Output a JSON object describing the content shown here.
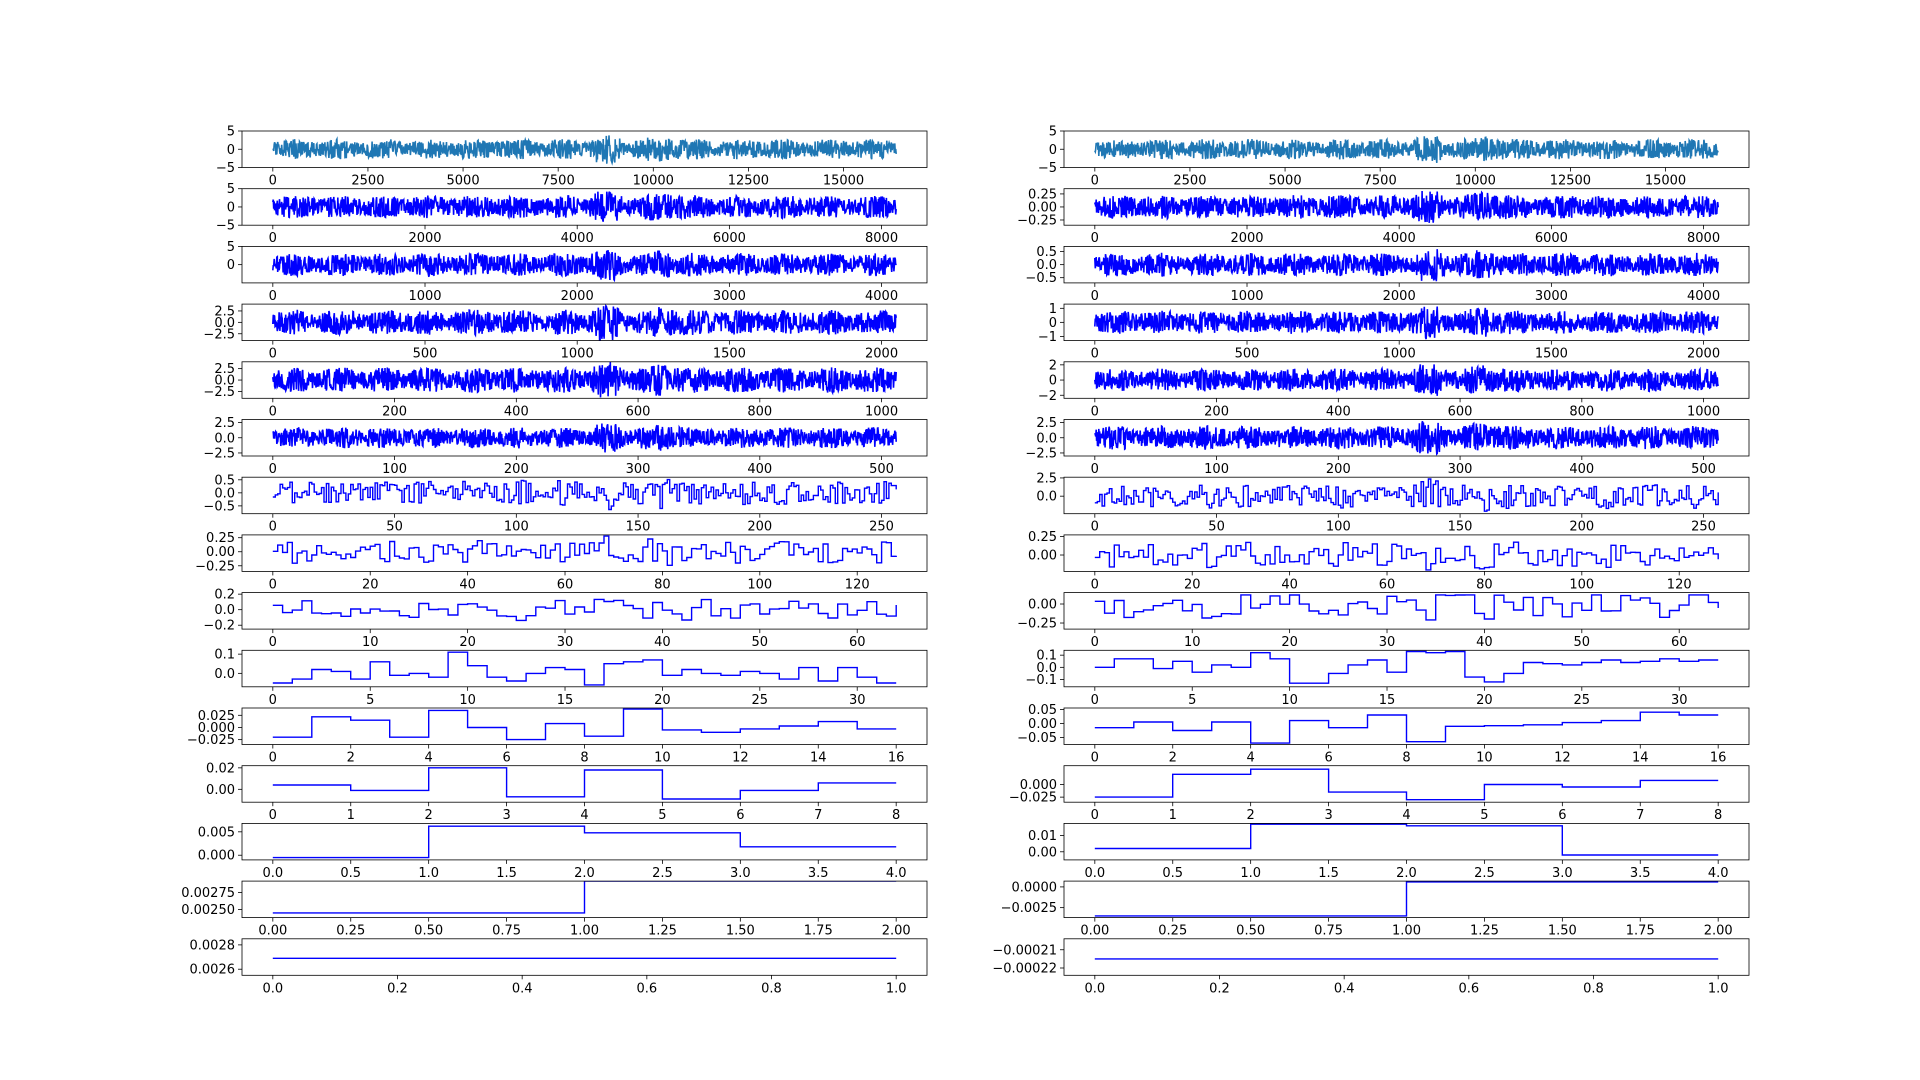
{
  "chart_data": [
    {
      "type": "line",
      "column": "left",
      "row": 0,
      "signal": "noise",
      "style": "filled",
      "color": "#1f77b4",
      "xlim": [
        0,
        16384
      ],
      "ylim": [
        -5,
        5
      ],
      "xticks": [
        "0",
        "2500",
        "5000",
        "7500",
        "10000",
        "12500",
        "15000"
      ],
      "yticks": [
        "5",
        "0",
        "−5"
      ],
      "x": [
        0,
        16384
      ],
      "y_band": [
        -4,
        4
      ],
      "seed": 11
    },
    {
      "type": "line",
      "column": "left",
      "row": 1,
      "signal": "noise",
      "style": "filled",
      "color": "#0000ff",
      "xlim": [
        0,
        8192
      ],
      "ylim": [
        -5,
        5
      ],
      "xticks": [
        "0",
        "2000",
        "4000",
        "6000",
        "8000"
      ],
      "yticks": [
        "5",
        "0",
        "−5"
      ],
      "x": [
        0,
        8192
      ],
      "y_band": [
        -4.5,
        4.5
      ],
      "seed": 12
    },
    {
      "type": "line",
      "column": "left",
      "row": 2,
      "signal": "noise",
      "style": "filled",
      "color": "#0000ff",
      "xlim": [
        0,
        4096
      ],
      "ylim": [
        -5,
        5
      ],
      "xticks": [
        "0",
        "1000",
        "2000",
        "3000",
        "4000"
      ],
      "yticks": [
        "5",
        "0"
      ],
      "x": [
        0,
        4096
      ],
      "y_band": [
        -4.5,
        4.5
      ],
      "seed": 13
    },
    {
      "type": "line",
      "column": "left",
      "row": 3,
      "signal": "noise",
      "style": "filled",
      "color": "#0000ff",
      "xlim": [
        0,
        2048
      ],
      "ylim": [
        -4,
        4
      ],
      "xticks": [
        "0",
        "500",
        "1000",
        "1500",
        "2000"
      ],
      "yticks": [
        "2.5",
        "0.0",
        "−2.5"
      ],
      "x": [
        0,
        2048
      ],
      "y_band": [
        -4,
        4
      ],
      "seed": 14
    },
    {
      "type": "line",
      "column": "left",
      "row": 4,
      "signal": "noise",
      "style": "filled",
      "color": "#0000ff",
      "xlim": [
        0,
        1024
      ],
      "ylim": [
        -4,
        4
      ],
      "xticks": [
        "0",
        "200",
        "400",
        "600",
        "800",
        "1000"
      ],
      "yticks": [
        "2.5",
        "0.0",
        "−2.5"
      ],
      "x": [
        0,
        1024
      ],
      "y_band": [
        -4,
        4
      ],
      "seed": 15
    },
    {
      "type": "line",
      "column": "left",
      "row": 5,
      "signal": "noise",
      "style": "filled",
      "color": "#0000ff",
      "xlim": [
        0,
        512
      ],
      "ylim": [
        -3,
        3
      ],
      "xticks": [
        "0",
        "100",
        "200",
        "300",
        "400",
        "500"
      ],
      "yticks": [
        "2.5",
        "0.0",
        "−2.5"
      ],
      "x": [
        0,
        512
      ],
      "y_band": [
        -2.5,
        2.5
      ],
      "seed": 16
    },
    {
      "type": "line",
      "column": "left",
      "row": 6,
      "signal": "step_noise",
      "style": "step",
      "color": "#0000ff",
      "xlim": [
        0,
        256
      ],
      "ylim": [
        -0.8,
        0.6
      ],
      "xticks": [
        "0",
        "50",
        "100",
        "150",
        "200",
        "250"
      ],
      "yticks": [
        "0.5",
        "0.0",
        "−0.5"
      ],
      "x": [
        0,
        256
      ],
      "y_band": [
        -0.7,
        0.55
      ],
      "seed": 17
    },
    {
      "type": "line",
      "column": "left",
      "row": 7,
      "signal": "step_noise",
      "style": "step",
      "color": "#0000ff",
      "xlim": [
        0,
        128
      ],
      "ylim": [
        -0.35,
        0.3
      ],
      "xticks": [
        "0",
        "20",
        "40",
        "60",
        "80",
        "100",
        "120"
      ],
      "yticks": [
        "0.25",
        "0.00",
        "−0.25"
      ],
      "x": [
        0,
        128
      ],
      "y_band": [
        -0.3,
        0.28
      ],
      "seed": 18
    },
    {
      "type": "line",
      "column": "left",
      "row": 8,
      "signal": "step_noise",
      "style": "step",
      "color": "#0000ff",
      "xlim": [
        0,
        64
      ],
      "ylim": [
        -0.25,
        0.22
      ],
      "xticks": [
        "0",
        "10",
        "20",
        "30",
        "40",
        "50",
        "60"
      ],
      "yticks": [
        "0.2",
        "0.0",
        "−0.2"
      ],
      "x": [
        0,
        64
      ],
      "y_band": [
        -0.2,
        0.2
      ],
      "seed": 19
    },
    {
      "type": "line",
      "column": "left",
      "row": 9,
      "signal": "step",
      "style": "step",
      "color": "#0000ff",
      "xlim": [
        0,
        32
      ],
      "ylim": [
        -0.07,
        0.12
      ],
      "xticks": [
        "0",
        "5",
        "10",
        "15",
        "20",
        "25",
        "30"
      ],
      "yticks": [
        "0.1",
        "0.0"
      ],
      "x": [
        0,
        1,
        2,
        3,
        4,
        5,
        6,
        7,
        8,
        9,
        10,
        11,
        12,
        13,
        14,
        15,
        16,
        17,
        18,
        19,
        20,
        21,
        22,
        23,
        24,
        25,
        26,
        27,
        28,
        29,
        30,
        31,
        32
      ],
      "y": [
        -0.05,
        -0.03,
        0.02,
        0.01,
        -0.03,
        0.06,
        -0.01,
        0.0,
        -0.02,
        0.11,
        0.04,
        -0.02,
        -0.04,
        0.0,
        0.03,
        0.02,
        -0.06,
        0.05,
        0.06,
        0.07,
        -0.01,
        0.02,
        0.0,
        -0.01,
        0.01,
        0.0,
        -0.03,
        0.03,
        -0.04,
        0.03,
        -0.02,
        -0.05,
        -0.05
      ]
    },
    {
      "type": "line",
      "column": "left",
      "row": 10,
      "signal": "step",
      "style": "step",
      "color": "#0000ff",
      "xlim": [
        0,
        16
      ],
      "ylim": [
        -0.035,
        0.04
      ],
      "xticks": [
        "0",
        "2",
        "4",
        "6",
        "8",
        "10",
        "12",
        "14",
        "16"
      ],
      "yticks": [
        "0.025",
        "0.000",
        "−0.025"
      ],
      "x": [
        0,
        1,
        2,
        3,
        4,
        5,
        6,
        7,
        8,
        9,
        10,
        11,
        12,
        13,
        14,
        15,
        16
      ],
      "y": [
        -0.02,
        0.022,
        0.015,
        -0.02,
        0.035,
        0.0,
        -0.025,
        0.008,
        -0.018,
        0.038,
        -0.005,
        -0.01,
        -0.003,
        0.003,
        0.012,
        -0.003,
        -0.003
      ]
    },
    {
      "type": "line",
      "column": "left",
      "row": 11,
      "signal": "step",
      "style": "step",
      "color": "#0000ff",
      "xlim": [
        0,
        8
      ],
      "ylim": [
        -0.012,
        0.022
      ],
      "xticks": [
        "0",
        "1",
        "2",
        "3",
        "4",
        "5",
        "6",
        "7",
        "8"
      ],
      "yticks": [
        "0.02",
        "0.00"
      ],
      "x": [
        0,
        1,
        2,
        3,
        4,
        5,
        6,
        7,
        8
      ],
      "y": [
        0.004,
        -0.001,
        0.02,
        -0.007,
        0.018,
        -0.009,
        -0.001,
        0.006,
        0.006
      ]
    },
    {
      "type": "line",
      "column": "left",
      "row": 12,
      "signal": "step",
      "style": "step",
      "color": "#0000ff",
      "xlim": [
        0,
        4
      ],
      "ylim": [
        -0.001,
        0.0068
      ],
      "xticks": [
        "0.0",
        "0.5",
        "1.0",
        "1.5",
        "2.0",
        "2.5",
        "3.0",
        "3.5",
        "4.0"
      ],
      "yticks": [
        "0.005",
        "0.000"
      ],
      "x": [
        0,
        1,
        2,
        3,
        4
      ],
      "y": [
        -0.0005,
        0.0062,
        0.0048,
        0.0018,
        0.0018
      ]
    },
    {
      "type": "line",
      "column": "left",
      "row": 13,
      "signal": "step",
      "style": "step",
      "color": "#0000ff",
      "xlim": [
        0,
        2
      ],
      "ylim": [
        0.00238,
        0.00292
      ],
      "xticks": [
        "0.00",
        "0.25",
        "0.50",
        "0.75",
        "1.00",
        "1.25",
        "1.50",
        "1.75",
        "2.00"
      ],
      "yticks": [
        "0.00275",
        "0.00250"
      ],
      "x": [
        0,
        1,
        2
      ],
      "y": [
        0.00245,
        0.00292,
        0.00292
      ]
    },
    {
      "type": "line",
      "column": "left",
      "row": 14,
      "signal": "step",
      "style": "step",
      "color": "#0000ff",
      "xlim": [
        0,
        1
      ],
      "ylim": [
        0.00255,
        0.00285
      ],
      "xticks": [
        "0.0",
        "0.2",
        "0.4",
        "0.6",
        "0.8",
        "1.0"
      ],
      "yticks": [
        "0.0028",
        "0.0026"
      ],
      "x": [
        0,
        1
      ],
      "y": [
        0.00269,
        0.00269
      ]
    },
    {
      "type": "line",
      "column": "right",
      "row": 0,
      "signal": "noise",
      "style": "filled",
      "color": "#1f77b4",
      "xlim": [
        0,
        16384
      ],
      "ylim": [
        -5,
        5
      ],
      "xticks": [
        "0",
        "2500",
        "5000",
        "7500",
        "10000",
        "12500",
        "15000"
      ],
      "yticks": [
        "5",
        "0",
        "−5"
      ],
      "x": [
        0,
        16384
      ],
      "y_band": [
        -4,
        4
      ],
      "seed": 21
    },
    {
      "type": "line",
      "column": "right",
      "row": 1,
      "signal": "noise",
      "style": "filled",
      "color": "#0000ff",
      "xlim": [
        0,
        8192
      ],
      "ylim": [
        -0.35,
        0.35
      ],
      "xticks": [
        "0",
        "2000",
        "4000",
        "6000",
        "8000"
      ],
      "yticks": [
        "0.25",
        "0.00",
        "−0.25"
      ],
      "x": [
        0,
        8192
      ],
      "y_band": [
        -0.33,
        0.33
      ],
      "seed": 22
    },
    {
      "type": "line",
      "column": "right",
      "row": 2,
      "signal": "noise",
      "style": "filled",
      "color": "#0000ff",
      "xlim": [
        0,
        4096
      ],
      "ylim": [
        -0.7,
        0.7
      ],
      "xticks": [
        "0",
        "1000",
        "2000",
        "3000",
        "4000"
      ],
      "yticks": [
        "0.5",
        "0.0",
        "−0.5"
      ],
      "x": [
        0,
        4096
      ],
      "y_band": [
        -0.65,
        0.65
      ],
      "seed": 23
    },
    {
      "type": "line",
      "column": "right",
      "row": 3,
      "signal": "noise",
      "style": "filled",
      "color": "#0000ff",
      "xlim": [
        0,
        2048
      ],
      "ylim": [
        -1.3,
        1.3
      ],
      "xticks": [
        "0",
        "500",
        "1000",
        "1500",
        "2000"
      ],
      "yticks": [
        "1",
        "0",
        "−1"
      ],
      "x": [
        0,
        2048
      ],
      "y_band": [
        -1.2,
        1.2
      ],
      "seed": 24
    },
    {
      "type": "line",
      "column": "right",
      "row": 4,
      "signal": "noise",
      "style": "filled",
      "color": "#0000ff",
      "xlim": [
        0,
        1024
      ],
      "ylim": [
        -2.4,
        2.4
      ],
      "xticks": [
        "0",
        "200",
        "400",
        "600",
        "800",
        "1000"
      ],
      "yticks": [
        "2",
        "0",
        "−2"
      ],
      "x": [
        0,
        1024
      ],
      "y_band": [
        -2.2,
        2.2
      ],
      "seed": 25
    },
    {
      "type": "line",
      "column": "right",
      "row": 5,
      "signal": "noise",
      "style": "filled",
      "color": "#0000ff",
      "xlim": [
        0,
        512
      ],
      "ylim": [
        -3,
        3
      ],
      "xticks": [
        "0",
        "100",
        "200",
        "300",
        "400",
        "500"
      ],
      "yticks": [
        "2.5",
        "0.0",
        "−2.5"
      ],
      "x": [
        0,
        512
      ],
      "y_band": [
        -2.8,
        2.8
      ],
      "seed": 26
    },
    {
      "type": "line",
      "column": "right",
      "row": 6,
      "signal": "step_noise",
      "style": "step",
      "color": "#0000ff",
      "xlim": [
        0,
        256
      ],
      "ylim": [
        -2.4,
        2.6
      ],
      "xticks": [
        "0",
        "50",
        "100",
        "150",
        "200",
        "250"
      ],
      "yticks": [
        "2.5",
        "0.0"
      ],
      "x": [
        0,
        256
      ],
      "y_band": [
        -2.2,
        2.4
      ],
      "seed": 27
    },
    {
      "type": "line",
      "column": "right",
      "row": 7,
      "signal": "step_noise",
      "style": "step",
      "color": "#0000ff",
      "xlim": [
        0,
        128
      ],
      "ylim": [
        -0.22,
        0.27
      ],
      "xticks": [
        "0",
        "20",
        "40",
        "60",
        "80",
        "100",
        "120"
      ],
      "yticks": [
        "0.25",
        "0.00"
      ],
      "x": [
        0,
        128
      ],
      "y_band": [
        -0.2,
        0.25
      ],
      "seed": 28
    },
    {
      "type": "line",
      "column": "right",
      "row": 8,
      "signal": "step_noise",
      "style": "step",
      "color": "#0000ff",
      "xlim": [
        0,
        64
      ],
      "ylim": [
        -0.33,
        0.15
      ],
      "xticks": [
        "0",
        "10",
        "20",
        "30",
        "40",
        "50",
        "60"
      ],
      "yticks": [
        "0.00",
        "−0.25"
      ],
      "x": [
        0,
        64
      ],
      "y_band": [
        -0.28,
        0.12
      ],
      "seed": 29
    },
    {
      "type": "line",
      "column": "right",
      "row": 9,
      "signal": "step",
      "style": "step",
      "color": "#0000ff",
      "xlim": [
        0,
        32
      ],
      "ylim": [
        -0.16,
        0.14
      ],
      "xticks": [
        "0",
        "5",
        "10",
        "15",
        "20",
        "25",
        "30"
      ],
      "yticks": [
        "0.1",
        "0.0",
        "−0.1"
      ],
      "x": [
        0,
        1,
        2,
        3,
        4,
        5,
        6,
        7,
        8,
        9,
        10,
        11,
        12,
        13,
        14,
        15,
        16,
        17,
        18,
        19,
        20,
        21,
        22,
        23,
        24,
        25,
        26,
        27,
        28,
        29,
        30,
        31,
        32
      ],
      "y": [
        0.0,
        0.07,
        0.07,
        -0.01,
        0.05,
        -0.04,
        0.02,
        0.0,
        0.12,
        0.07,
        -0.13,
        -0.13,
        -0.05,
        0.02,
        0.06,
        -0.04,
        0.13,
        0.12,
        0.13,
        -0.08,
        -0.12,
        -0.05,
        0.04,
        0.03,
        0.02,
        0.04,
        0.06,
        0.04,
        0.05,
        0.07,
        0.05,
        0.06,
        0.06
      ]
    },
    {
      "type": "line",
      "column": "right",
      "row": 10,
      "signal": "step",
      "style": "step",
      "color": "#0000ff",
      "xlim": [
        0,
        16
      ],
      "ylim": [
        -0.075,
        0.055
      ],
      "xticks": [
        "0",
        "2",
        "4",
        "6",
        "8",
        "10",
        "12",
        "14",
        "16"
      ],
      "yticks": [
        "0.05",
        "0.00",
        "−0.05"
      ],
      "x": [
        0,
        1,
        2,
        3,
        4,
        5,
        6,
        7,
        8,
        9,
        10,
        11,
        12,
        13,
        14,
        15,
        16
      ],
      "y": [
        -0.015,
        0.005,
        -0.025,
        0.005,
        -0.07,
        0.01,
        -0.015,
        0.03,
        -0.065,
        -0.01,
        -0.008,
        -0.005,
        0.003,
        0.01,
        0.04,
        0.03,
        0.045
      ]
    },
    {
      "type": "line",
      "column": "right",
      "row": 11,
      "signal": "step",
      "style": "step",
      "color": "#0000ff",
      "xlim": [
        0,
        8
      ],
      "ylim": [
        -0.035,
        0.037
      ],
      "xticks": [
        "0",
        "1",
        "2",
        "3",
        "4",
        "5",
        "6",
        "7",
        "8"
      ],
      "yticks": [
        "0.000",
        "−0.025"
      ],
      "x": [
        0,
        1,
        2,
        3,
        4,
        5,
        6,
        7,
        8
      ],
      "y": [
        -0.025,
        0.02,
        0.03,
        -0.015,
        -0.03,
        0.0,
        -0.005,
        0.008,
        0.008
      ]
    },
    {
      "type": "line",
      "column": "right",
      "row": 12,
      "signal": "step",
      "style": "step",
      "color": "#0000ff",
      "xlim": [
        0,
        4
      ],
      "ylim": [
        -0.005,
        0.0175
      ],
      "xticks": [
        "0.0",
        "0.5",
        "1.0",
        "1.5",
        "2.0",
        "2.5",
        "3.0",
        "3.5",
        "4.0"
      ],
      "yticks": [
        "0.01",
        "0.00"
      ],
      "x": [
        0,
        1,
        2,
        3,
        4
      ],
      "y": [
        0.002,
        0.017,
        0.016,
        -0.002,
        -0.002
      ]
    },
    {
      "type": "line",
      "column": "right",
      "row": 13,
      "signal": "step",
      "style": "step",
      "color": "#0000ff",
      "xlim": [
        0,
        2
      ],
      "ylim": [
        -0.0037,
        0.0007
      ],
      "xticks": [
        "0.00",
        "0.25",
        "0.50",
        "0.75",
        "1.00",
        "1.25",
        "1.50",
        "1.75",
        "2.00"
      ],
      "yticks": [
        "0.0000",
        "−0.0025"
      ],
      "x": [
        0,
        1,
        2
      ],
      "y": [
        -0.0035,
        0.0006,
        0.0006
      ]
    },
    {
      "type": "line",
      "column": "right",
      "row": 14,
      "signal": "step",
      "style": "step",
      "color": "#0000ff",
      "xlim": [
        0,
        1
      ],
      "ylim": [
        -0.000224,
        -0.000204
      ],
      "xticks": [
        "0.0",
        "0.2",
        "0.4",
        "0.6",
        "0.8",
        "1.0"
      ],
      "yticks": [
        "−0.00021",
        "−0.00022"
      ],
      "x": [
        0,
        1
      ],
      "y": [
        -0.000215,
        -0.000215
      ]
    }
  ]
}
